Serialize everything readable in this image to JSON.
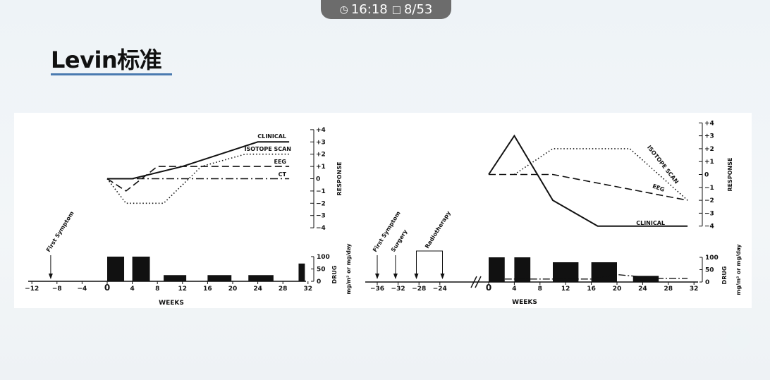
{
  "status": {
    "clock_icon": "clock-icon",
    "time": "16:18",
    "page_icon": "page-icon",
    "page": "8/53"
  },
  "slide": {
    "title": "Levin标准"
  },
  "chart_data": [
    {
      "type": "line",
      "series": [
        {
          "name": "CLINICAL",
          "style": "solid",
          "points": [
            [
              0,
              0
            ],
            [
              4,
              0
            ],
            [
              12,
              1
            ],
            [
              18,
              2
            ],
            [
              24,
              3
            ],
            [
              29,
              3
            ]
          ]
        },
        {
          "name": "ISOTOPE SCAN",
          "style": "dotted",
          "points": [
            [
              0,
              0
            ],
            [
              3,
              -2
            ],
            [
              9,
              -2
            ],
            [
              15,
              1
            ],
            [
              22,
              2
            ],
            [
              29,
              2
            ]
          ]
        },
        {
          "name": "EEG",
          "style": "dashed",
          "points": [
            [
              0,
              0
            ],
            [
              3,
              -1
            ],
            [
              8,
              1
            ],
            [
              29,
              1
            ]
          ]
        },
        {
          "name": "CT",
          "style": "dashdot",
          "points": [
            [
              0,
              0
            ],
            [
              29,
              0
            ]
          ]
        }
      ],
      "ylabel": "RESPONSE",
      "ylim": [
        -4,
        4
      ],
      "yticks": [
        "+4",
        "+3",
        "+2",
        "+1",
        "0",
        "−1",
        "−2",
        "−3",
        "−4"
      ],
      "bars": [
        {
          "x0": 0,
          "x1": 2.7,
          "value": 100
        },
        {
          "x0": 4,
          "x1": 6.8,
          "value": 100
        },
        {
          "x0": 9,
          "x1": 12.6,
          "value": 25
        },
        {
          "x0": 16,
          "x1": 19.8,
          "value": 25
        },
        {
          "x0": 22.5,
          "x1": 26.5,
          "value": 25
        },
        {
          "x0": 30.5,
          "x1": 31.5,
          "value": 72
        }
      ],
      "drug_label": "DRUG",
      "drug_unit": "mg/m² or mg/day",
      "drug_ticks": [
        "100",
        "50",
        "0"
      ],
      "drug_ylim": [
        0,
        100
      ],
      "xlabel": "WEEKS",
      "xticks": [
        "−12",
        "−8",
        "−4",
        "0",
        "4",
        "8",
        "12",
        "16",
        "20",
        "24",
        "28",
        "32"
      ],
      "annotations": [
        {
          "text": "First Symptom",
          "x": -9
        }
      ]
    },
    {
      "type": "line",
      "series": [
        {
          "name": "CLINICAL",
          "style": "solid",
          "points": [
            [
              0,
              0
            ],
            [
              4,
              3
            ],
            [
              10,
              -2
            ],
            [
              17,
              -4
            ],
            [
              31,
              -4
            ]
          ]
        },
        {
          "name": "ISOTOPE SCAN",
          "style": "dotted",
          "points": [
            [
              4,
              0
            ],
            [
              10,
              2
            ],
            [
              22,
              2
            ],
            [
              31,
              -2
            ]
          ]
        },
        {
          "name": "EEG",
          "style": "dashed",
          "points": [
            [
              0,
              0
            ],
            [
              10,
              0
            ],
            [
              31,
              -2
            ]
          ]
        }
      ],
      "ylabel": "RESPONSE",
      "ylim": [
        -4,
        4
      ],
      "yticks": [
        "+4",
        "+3",
        "+2",
        "+1",
        "0",
        "−1",
        "−2",
        "−3",
        "−4"
      ],
      "bars": [
        {
          "x0": 0,
          "x1": 2.5,
          "value": 100
        },
        {
          "x0": 4,
          "x1": 6.5,
          "value": 100
        },
        {
          "x0": 10,
          "x1": 14,
          "value": 80
        },
        {
          "x0": 16,
          "x1": 20,
          "value": 80
        },
        {
          "x0": 22.5,
          "x1": 26.5,
          "value": 25
        }
      ],
      "dose_line": [
        [
          2.5,
          12
        ],
        [
          4,
          12
        ],
        [
          6.5,
          12
        ],
        [
          10,
          12
        ],
        [
          14,
          12
        ],
        [
          16,
          12
        ],
        [
          20,
          30
        ],
        [
          26.5,
          15
        ],
        [
          31,
          15
        ]
      ],
      "drug_label": "DRUG",
      "drug_unit": "mg/m² or mg/day",
      "drug_ticks": [
        "100",
        "50",
        "0"
      ],
      "drug_ylim": [
        0,
        100
      ],
      "xlabel": "WEEKS",
      "xticks_pre": [
        "−36",
        "−32",
        "−28",
        "−24"
      ],
      "xticks": [
        "0",
        "4",
        "8",
        "12",
        "16",
        "20",
        "24",
        "28",
        "32"
      ],
      "annotations": [
        {
          "text": "First Symptom",
          "x": -36
        },
        {
          "text": "Surgery",
          "x": -32.5
        },
        {
          "text": "Radiotherapy",
          "x0": -28.5,
          "x1": -23.5
        }
      ]
    }
  ]
}
